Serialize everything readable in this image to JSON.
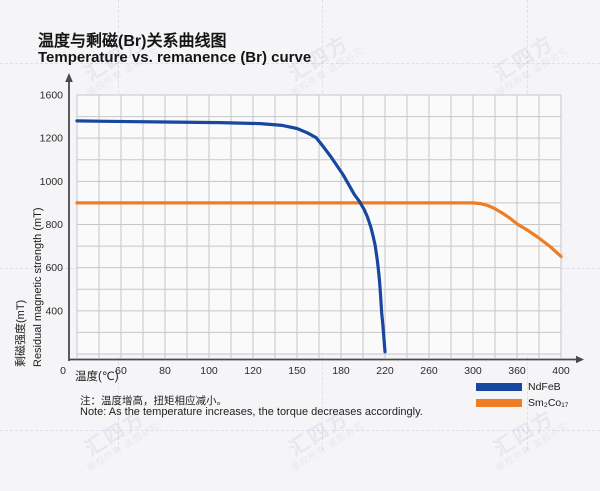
{
  "header": {
    "title_zh": "温度与剩磁(Br)关系曲线图",
    "title_en": "Temperature vs. remanence (Br) curve"
  },
  "watermark": {
    "brand": "汇四方",
    "notice": "版权所有 盗图必究"
  },
  "chart_data": {
    "type": "line",
    "title": "Temperature vs. remanence (Br) curve",
    "grid": true,
    "legend_position": "bottom-right",
    "x_axis": {
      "title": "温度(℃)",
      "tick_values": [
        0,
        60,
        80,
        100,
        120,
        150,
        180,
        220,
        260,
        300,
        360,
        400
      ],
      "minor_per_major": 2
    },
    "y_axis": {
      "title_zh": "剩磁强度(mT)",
      "title_en": "Residual magnetic strength (mT)",
      "tick_values": [
        0,
        400,
        600,
        800,
        1000,
        1200,
        1600
      ],
      "minor_per_major": 2
    },
    "series": [
      {
        "name": "NdFeB",
        "color": "#17479E",
        "points": [
          [
            0,
            1360
          ],
          [
            40,
            1356
          ],
          [
            80,
            1350
          ],
          [
            105,
            1344
          ],
          [
            125,
            1335
          ],
          [
            140,
            1318
          ],
          [
            150,
            1290
          ],
          [
            157,
            1250
          ],
          [
            163,
            1205
          ],
          [
            168,
            1160
          ],
          [
            173,
            1115
          ],
          [
            177,
            1075
          ],
          [
            182,
            1030
          ],
          [
            187,
            985
          ],
          [
            192,
            940
          ],
          [
            197,
            905
          ],
          [
            201,
            870
          ],
          [
            204,
            835
          ],
          [
            207,
            790
          ],
          [
            209,
            750
          ],
          [
            211,
            705
          ],
          [
            213,
            635
          ],
          [
            214,
            590
          ],
          [
            215,
            540
          ],
          [
            216,
            470
          ],
          [
            217,
            380
          ],
          [
            218,
            275
          ],
          [
            219,
            150
          ],
          [
            220,
            20
          ]
        ]
      },
      {
        "name": "Sm₂Co₁₇",
        "color": "#EE7D23",
        "points": [
          [
            0,
            900
          ],
          [
            60,
            900
          ],
          [
            120,
            900
          ],
          [
            180,
            900
          ],
          [
            240,
            900
          ],
          [
            300,
            900
          ],
          [
            310,
            897
          ],
          [
            320,
            888
          ],
          [
            330,
            873
          ],
          [
            340,
            853
          ],
          [
            350,
            830
          ],
          [
            360,
            803
          ],
          [
            370,
            772
          ],
          [
            380,
            737
          ],
          [
            390,
            698
          ],
          [
            400,
            652
          ]
        ]
      }
    ]
  },
  "note": {
    "zh": "注：温度增高，扭矩相应减小。",
    "en": "Note: As the temperature increases, the torque decreases accordingly."
  }
}
